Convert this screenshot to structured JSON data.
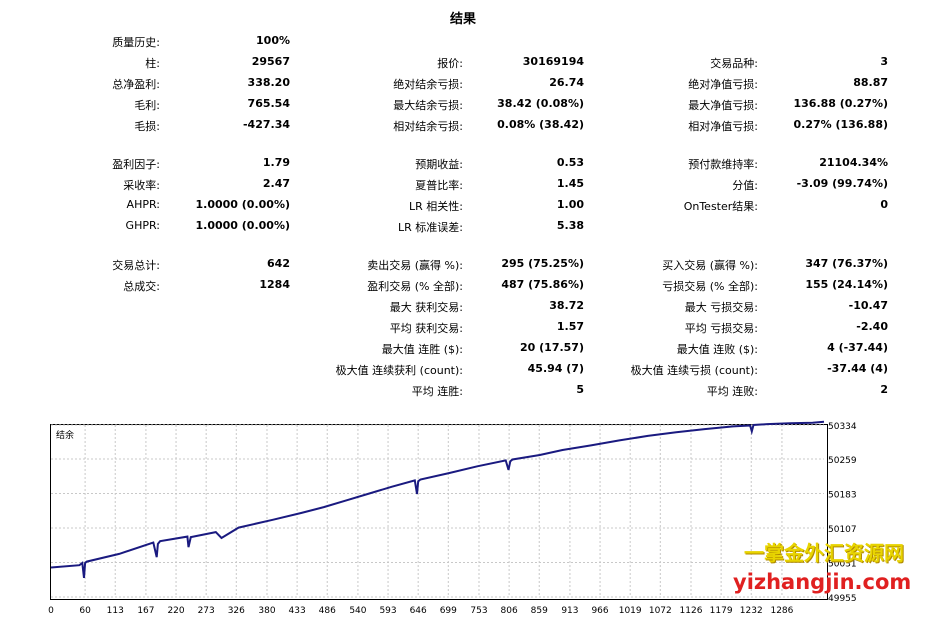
{
  "title": "结果",
  "stats": {
    "history_quality": {
      "label": "质量历史:",
      "value": "100%"
    },
    "bars": {
      "label": "柱:",
      "value": "29567"
    },
    "ticks": {
      "label": "报价:",
      "value": "30169194"
    },
    "symbols": {
      "label": "交易品种:",
      "value": "3"
    },
    "net_profit": {
      "label": "总净盈利:",
      "value": "338.20"
    },
    "balance_dd_abs": {
      "label": "绝对结余亏损:",
      "value": "26.74"
    },
    "equity_dd_abs": {
      "label": "绝对净值亏损:",
      "value": "88.87"
    },
    "gross_profit": {
      "label": "毛利:",
      "value": "765.54"
    },
    "balance_dd_max": {
      "label": "最大结余亏损:",
      "value": "38.42 (0.08%)"
    },
    "equity_dd_max": {
      "label": "最大净值亏损:",
      "value": "136.88 (0.27%)"
    },
    "gross_loss": {
      "label": "毛损:",
      "value": "-427.34"
    },
    "balance_dd_rel": {
      "label": "相对结余亏损:",
      "value": "0.08% (38.42)"
    },
    "equity_dd_rel": {
      "label": "相对净值亏损:",
      "value": "0.27% (136.88)"
    },
    "profit_factor": {
      "label": "盈利因子:",
      "value": "1.79"
    },
    "expected_payoff": {
      "label": "预期收益:",
      "value": "0.53"
    },
    "margin_level": {
      "label": "预付款维持率:",
      "value": "21104.34%"
    },
    "recovery_factor": {
      "label": "采收率:",
      "value": "2.47"
    },
    "sharpe_ratio": {
      "label": "夏普比率:",
      "value": "1.45"
    },
    "z_score": {
      "label": "分值:",
      "value": "-3.09 (99.74%)"
    },
    "ahpr": {
      "label": "AHPR:",
      "value": "1.0000 (0.00%)"
    },
    "lr_correlation": {
      "label": "LR 相关性:",
      "value": "1.00"
    },
    "ontester": {
      "label": "OnTester结果:",
      "value": "0"
    },
    "ghpr": {
      "label": "GHPR:",
      "value": "1.0000 (0.00%)"
    },
    "lr_std_error": {
      "label": "LR 标准误差:",
      "value": "5.38"
    },
    "total_trades": {
      "label": "交易总计:",
      "value": "642"
    },
    "short_trades": {
      "label": "卖出交易 (赢得 %):",
      "value": "295 (75.25%)"
    },
    "long_trades": {
      "label": "买入交易 (赢得 %):",
      "value": "347 (76.37%)"
    },
    "total_deals": {
      "label": "总成交:",
      "value": "1284"
    },
    "profit_trades": {
      "label": "盈利交易 (% 全部):",
      "value": "487 (75.86%)"
    },
    "loss_trades": {
      "label": "亏损交易 (% 全部):",
      "value": "155 (24.14%)"
    },
    "largest_profit": {
      "label": "最大 获利交易:",
      "value": "38.72"
    },
    "largest_loss": {
      "label": "最大 亏损交易:",
      "value": "-10.47"
    },
    "avg_profit": {
      "label": "平均 获利交易:",
      "value": "1.57"
    },
    "avg_loss": {
      "label": "平均 亏损交易:",
      "value": "-2.40"
    },
    "max_cons_wins": {
      "label": "最大值 连胜 ($):",
      "value": "20 (17.57)"
    },
    "max_cons_losses": {
      "label": "最大值 连败 ($):",
      "value": "4 (-37.44)"
    },
    "max_cons_profit": {
      "label": "极大值 连续获利 (count):",
      "value": "45.94 (7)"
    },
    "max_cons_loss": {
      "label": "极大值 连续亏损 (count):",
      "value": "-37.44 (4)"
    },
    "avg_cons_wins": {
      "label": "平均 连胜:",
      "value": "5"
    },
    "avg_cons_losses": {
      "label": "平均 连败:",
      "value": "2"
    }
  },
  "chart_data": {
    "type": "line",
    "title": "结余",
    "x_ticks": [
      "0",
      "60",
      "113",
      "167",
      "220",
      "273",
      "326",
      "380",
      "433",
      "486",
      "540",
      "593",
      "646",
      "699",
      "753",
      "806",
      "859",
      "913",
      "966",
      "1019",
      "1072",
      "1126",
      "1179",
      "1232",
      "1286"
    ],
    "y_ticks": [
      "49955",
      "50031",
      "50107",
      "50183",
      "50259",
      "50334"
    ],
    "xlim": [
      0,
      1360
    ],
    "ylim": [
      49955,
      50334
    ],
    "series": [
      {
        "name": "",
        "color": "#1a1a80",
        "x": [
          0,
          50,
          55,
          58,
          60,
          63,
          120,
          180,
          186,
          188,
          192,
          240,
          242,
          246,
          290,
          300,
          330,
          390,
          440,
          480,
          520,
          560,
          600,
          640,
          644,
          646,
          650,
          700,
          750,
          800,
          805,
          808,
          812,
          860,
          900,
          950,
          1000,
          1050,
          1100,
          1150,
          1200,
          1230,
          1233,
          1236,
          1260,
          1300,
          1340,
          1360
        ],
        "y": [
          50020,
          50025,
          50030,
          49997,
          50030,
          50033,
          50050,
          50075,
          50043,
          50072,
          50078,
          50088,
          50065,
          50087,
          50098,
          50085,
          50108,
          50125,
          50140,
          50153,
          50168,
          50183,
          50198,
          50212,
          50182,
          50210,
          50214,
          50228,
          50243,
          50256,
          50235,
          50254,
          50258,
          50268,
          50279,
          50289,
          50300,
          50310,
          50318,
          50325,
          50331,
          50333,
          50320,
          50334,
          50336,
          50338,
          50339,
          50341
        ]
      }
    ],
    "grid": true
  }
}
